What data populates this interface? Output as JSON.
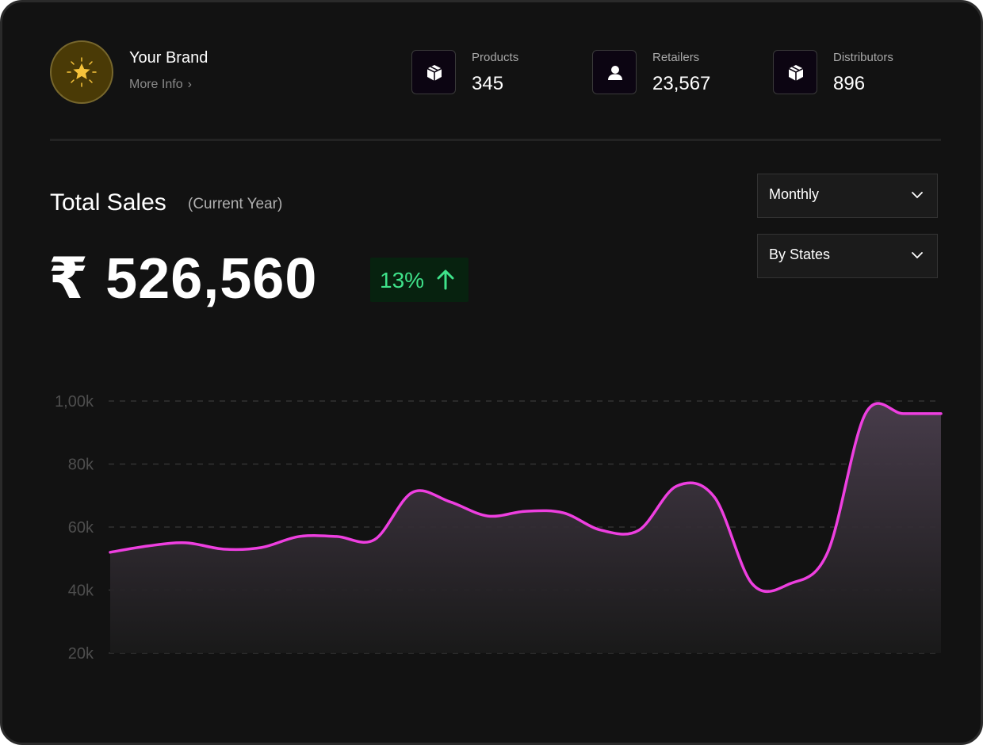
{
  "brand": {
    "name": "Your Brand",
    "more_info": "More Info",
    "icon": "star-icon",
    "colors": {
      "avatar_bg": "#4a3a06",
      "star": "#f6c33b"
    }
  },
  "stats": [
    {
      "label": "Products",
      "value": "345",
      "icon": "package-icon"
    },
    {
      "label": "Retailers",
      "value": "23,567",
      "icon": "user-icon"
    },
    {
      "label": "Distributors",
      "value": "896",
      "icon": "package-icon"
    }
  ],
  "sales": {
    "title": "Total Sales",
    "subtitle": "(Current Year)",
    "amount": "₹ 526,560",
    "growth": "13%",
    "growth_icon": "arrow-up-icon"
  },
  "filters": {
    "period": "Monthly",
    "grouping": "By States"
  },
  "colors": {
    "line": "#ee3fe0",
    "growth": "#3fe28a",
    "background": "#121212"
  },
  "chart_data": {
    "type": "area",
    "y_ticks": [
      "1,00k",
      "80k",
      "60k",
      "40k",
      "20k"
    ],
    "ylim": [
      20,
      100
    ],
    "y_unit": "k",
    "grid": "horizontal dashed",
    "x": [
      0,
      0.5,
      1,
      1.5,
      2,
      2.5,
      3,
      3.5,
      4,
      4.5,
      5,
      5.5,
      6,
      6.5,
      7,
      7.5,
      8,
      8.5,
      9,
      9.5,
      10,
      10.5,
      11
    ],
    "values": [
      52,
      54,
      55,
      53,
      53.5,
      57,
      57,
      56,
      71,
      68,
      63.5,
      65,
      64.5,
      59,
      59,
      73,
      69.5,
      42,
      42,
      52,
      96,
      96,
      96
    ]
  }
}
